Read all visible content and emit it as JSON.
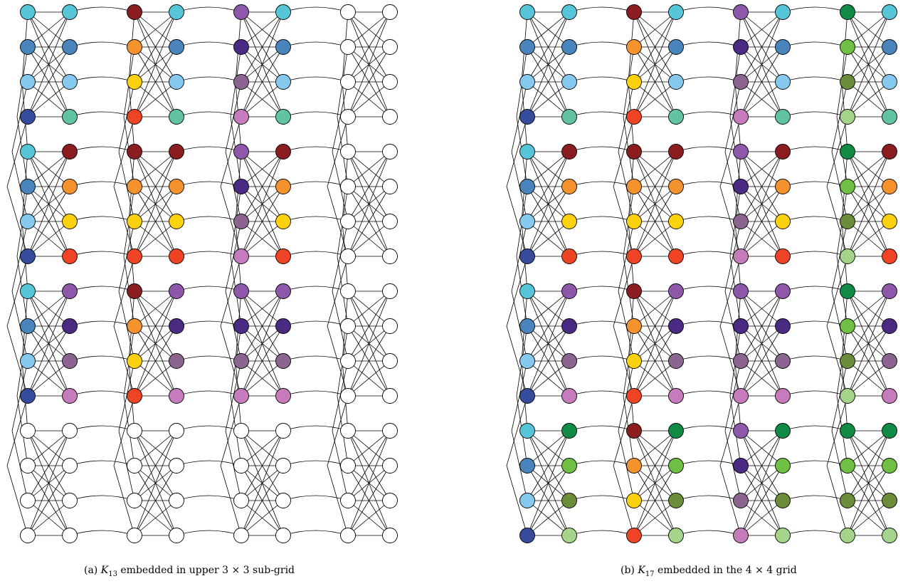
{
  "palette": {
    "c0": "#57c5d8",
    "c1": "#4a84bd",
    "c2": "#85c9ee",
    "c3": "#354c9c",
    "c4": "#62c3a2",
    "d0": "#8b1c1f",
    "d1": "#f4922e",
    "d2": "#fcd20f",
    "d3": "#ee4425",
    "p0": "#8e57aa",
    "p1": "#4a2a82",
    "p2": "#8b6590",
    "p3": "#c57bbc",
    "g0": "#0f8b46",
    "g1": "#6ebf43",
    "g2": "#6b8d3a",
    "g3": "#a4d38a",
    "empty": "#ffffff"
  },
  "panels": [
    {
      "id": "a",
      "caption": {
        "prefix": "(a) ",
        "k": "K",
        "sub": "13",
        "text": " embedded in upper 3 × 3 sub-grid"
      },
      "grid": [
        [
          [
            "c0",
            "c1",
            "c2",
            "c3"
          ],
          [
            "c0",
            "c1",
            "c2",
            "c4"
          ],
          [
            "d0",
            "d1",
            "d2",
            "d3"
          ],
          [
            "c0",
            "c1",
            "c2",
            "c4"
          ],
          [
            "p0",
            "p1",
            "p2",
            "p3"
          ],
          [
            "c0",
            "c1",
            "c2",
            "c4"
          ],
          [
            "empty",
            "empty",
            "empty",
            "empty"
          ],
          [
            "empty",
            "empty",
            "empty",
            "empty"
          ]
        ],
        [
          [
            "c0",
            "c1",
            "c2",
            "c3"
          ],
          [
            "d0",
            "d1",
            "d2",
            "d3"
          ],
          [
            "d0",
            "d1",
            "d2",
            "d3"
          ],
          [
            "d0",
            "d1",
            "d2",
            "d3"
          ],
          [
            "p0",
            "p1",
            "p2",
            "p3"
          ],
          [
            "d0",
            "d1",
            "d2",
            "d3"
          ],
          [
            "empty",
            "empty",
            "empty",
            "empty"
          ],
          [
            "empty",
            "empty",
            "empty",
            "empty"
          ]
        ],
        [
          [
            "c0",
            "c1",
            "c2",
            "c3"
          ],
          [
            "p0",
            "p1",
            "p2",
            "p3"
          ],
          [
            "d0",
            "d1",
            "d2",
            "d3"
          ],
          [
            "p0",
            "p1",
            "p2",
            "p3"
          ],
          [
            "p0",
            "p1",
            "p2",
            "p3"
          ],
          [
            "p0",
            "p1",
            "p2",
            "p3"
          ],
          [
            "empty",
            "empty",
            "empty",
            "empty"
          ],
          [
            "empty",
            "empty",
            "empty",
            "empty"
          ]
        ],
        [
          [
            "empty",
            "empty",
            "empty",
            "empty"
          ],
          [
            "empty",
            "empty",
            "empty",
            "empty"
          ],
          [
            "empty",
            "empty",
            "empty",
            "empty"
          ],
          [
            "empty",
            "empty",
            "empty",
            "empty"
          ],
          [
            "empty",
            "empty",
            "empty",
            "empty"
          ],
          [
            "empty",
            "empty",
            "empty",
            "empty"
          ],
          [
            "empty",
            "empty",
            "empty",
            "empty"
          ],
          [
            "empty",
            "empty",
            "empty",
            "empty"
          ]
        ]
      ]
    },
    {
      "id": "b",
      "caption": {
        "prefix": "(b) ",
        "k": "K",
        "sub": "17",
        "text": " embedded in the 4 × 4 grid"
      },
      "grid": [
        [
          [
            "c0",
            "c1",
            "c2",
            "c3"
          ],
          [
            "c0",
            "c1",
            "c2",
            "c4"
          ],
          [
            "d0",
            "d1",
            "d2",
            "d3"
          ],
          [
            "c0",
            "c1",
            "c2",
            "c4"
          ],
          [
            "p0",
            "p1",
            "p2",
            "p3"
          ],
          [
            "c0",
            "c1",
            "c2",
            "c4"
          ],
          [
            "g0",
            "g1",
            "g2",
            "g3"
          ],
          [
            "c0",
            "c1",
            "c2",
            "c4"
          ]
        ],
        [
          [
            "c0",
            "c1",
            "c2",
            "c3"
          ],
          [
            "d0",
            "d1",
            "d2",
            "d3"
          ],
          [
            "d0",
            "d1",
            "d2",
            "d3"
          ],
          [
            "d0",
            "d1",
            "d2",
            "d3"
          ],
          [
            "p0",
            "p1",
            "p2",
            "p3"
          ],
          [
            "d0",
            "d1",
            "d2",
            "d3"
          ],
          [
            "g0",
            "g1",
            "g2",
            "g3"
          ],
          [
            "d0",
            "d1",
            "d2",
            "d3"
          ]
        ],
        [
          [
            "c0",
            "c1",
            "c2",
            "c3"
          ],
          [
            "p0",
            "p1",
            "p2",
            "p3"
          ],
          [
            "d0",
            "d1",
            "d2",
            "d3"
          ],
          [
            "p0",
            "p1",
            "p2",
            "p3"
          ],
          [
            "p0",
            "p1",
            "p2",
            "p3"
          ],
          [
            "p0",
            "p1",
            "p2",
            "p3"
          ],
          [
            "g0",
            "g1",
            "g2",
            "g3"
          ],
          [
            "p0",
            "p1",
            "p2",
            "p3"
          ]
        ],
        [
          [
            "c0",
            "c1",
            "c2",
            "c3"
          ],
          [
            "g0",
            "g1",
            "g2",
            "g3"
          ],
          [
            "d0",
            "d1",
            "d2",
            "d3"
          ],
          [
            "g0",
            "g1",
            "g2",
            "g3"
          ],
          [
            "p0",
            "p1",
            "p2",
            "p3"
          ],
          [
            "g0",
            "g1",
            "g2",
            "g3"
          ],
          [
            "g0",
            "g1",
            "g2",
            "g3"
          ],
          [
            "g0",
            "g1",
            "g2",
            "g3"
          ]
        ]
      ]
    }
  ]
}
